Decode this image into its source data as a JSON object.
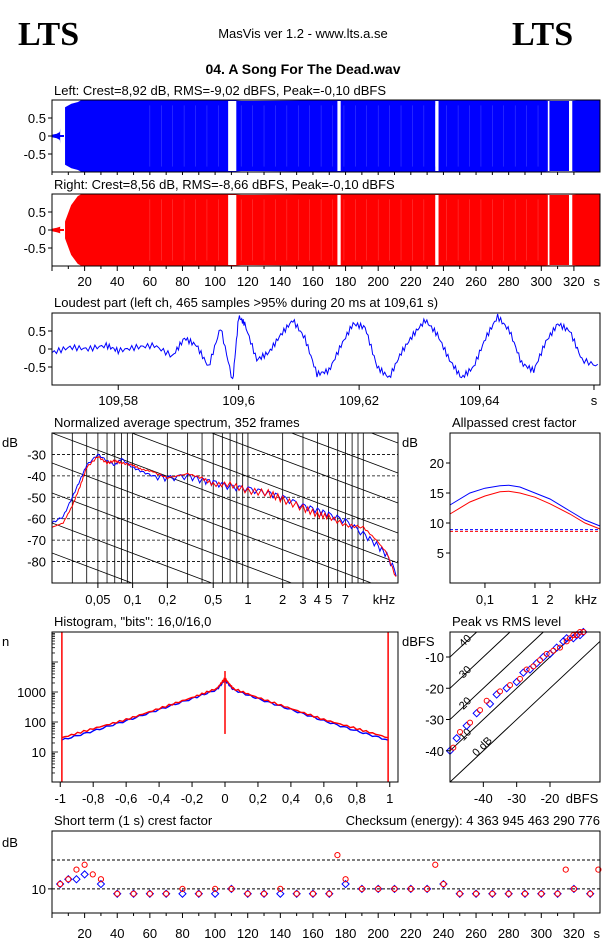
{
  "header": {
    "logo_left": "LTS",
    "logo_right": "LTS",
    "app_title": "MasVis ver 1.2 - www.lts.a.se",
    "file_title": "04. A Song For The Dead.wav"
  },
  "colors": {
    "left": "#0000ff",
    "right": "#ff0000"
  },
  "chart_data": [
    {
      "id": "left-waveform",
      "type": "area",
      "title": "Left: Crest=8,92 dB, RMS=-9,02 dBFS, Peak=-0,10 dBFS",
      "y_ticks": [
        "0.5",
        "0",
        "-0.5"
      ],
      "ylim": [
        -1,
        1
      ],
      "xlim": [
        0,
        336
      ],
      "envelope": {
        "x": [
          0,
          3,
          5,
          8,
          12,
          16,
          18,
          110,
          116,
          172,
          178,
          236,
          240,
          300,
          306,
          318,
          324,
          336
        ],
        "amp": [
          0.02,
          0.05,
          0.1,
          0.8,
          0.9,
          0.95,
          1,
          1,
          0.98,
          1,
          1,
          1,
          1,
          1,
          0.98,
          0.98,
          1,
          1
        ]
      },
      "gaps": [
        [
          5,
          8
        ],
        [
          108,
          113
        ],
        [
          175,
          177
        ],
        [
          235,
          237
        ],
        [
          304,
          305
        ],
        [
          317,
          319
        ]
      ]
    },
    {
      "id": "right-waveform",
      "type": "area",
      "title": "Right: Crest=8,56 dB, RMS=-8,66 dBFS, Peak=-0,10 dBFS",
      "y_ticks": [
        "0.5",
        "0",
        "-0.5"
      ],
      "ylim": [
        -1,
        1
      ],
      "xlim": [
        0,
        336
      ],
      "x_ticks": [
        "20",
        "40",
        "60",
        "80",
        "100",
        "120",
        "140",
        "160",
        "180",
        "200",
        "220",
        "240",
        "260",
        "280",
        "300",
        "320",
        "s"
      ],
      "envelope": {
        "x": [
          0,
          3,
          5,
          8,
          12,
          16,
          18,
          110,
          116,
          172,
          178,
          236,
          240,
          300,
          306,
          318,
          324,
          336
        ],
        "amp": [
          0.02,
          0.05,
          0.08,
          0.2,
          0.7,
          0.95,
          1,
          1,
          0.98,
          1,
          1,
          1,
          1,
          1,
          0.98,
          0.98,
          1,
          1
        ]
      },
      "gaps": [
        [
          5,
          8
        ],
        [
          108,
          113
        ],
        [
          175,
          177
        ],
        [
          235,
          237
        ],
        [
          304,
          305
        ],
        [
          317,
          319
        ]
      ]
    },
    {
      "id": "loudest-part",
      "type": "line",
      "title": "Loudest part (left  ch, 465 samples >95% during 20 ms at 109,61 s)",
      "y_ticks": [
        "0.5",
        "0",
        "-0.5"
      ],
      "x_ticks": [
        "109,58",
        "109,6",
        "109,62",
        "109,64",
        "s"
      ],
      "x_tick_values": [
        109.58,
        109.6,
        109.62,
        109.64
      ],
      "xlim": [
        109.569,
        109.66
      ],
      "ylim": [
        -1,
        1
      ],
      "x": [
        109.569,
        109.572,
        109.575,
        109.578,
        109.58,
        109.583,
        109.586,
        109.589,
        109.591,
        109.593,
        109.595,
        109.597,
        109.599,
        109.6,
        109.601,
        109.603,
        109.605,
        109.607,
        109.609,
        109.611,
        109.613,
        109.615,
        109.617,
        109.619,
        109.621,
        109.623,
        109.625,
        109.627,
        109.629,
        109.631,
        109.633,
        109.635,
        109.637,
        109.639,
        109.641,
        109.643,
        109.645,
        109.647,
        109.649,
        109.651,
        109.653,
        109.655,
        109.657,
        109.66
      ],
      "y": [
        -0.1,
        0.05,
        0.0,
        0.1,
        -0.05,
        0.05,
        0.1,
        -0.2,
        0.3,
        0.1,
        -0.5,
        0.6,
        -0.9,
        0.9,
        0.7,
        -0.3,
        -0.1,
        0.4,
        0.8,
        0.3,
        -0.7,
        -0.6,
        0.1,
        0.7,
        0.6,
        -0.5,
        -0.8,
        -0.1,
        0.4,
        0.8,
        0.4,
        -0.3,
        -0.8,
        -0.5,
        0.3,
        0.9,
        0.5,
        -0.4,
        -0.6,
        0.2,
        0.7,
        0.5,
        -0.3,
        -0.5
      ]
    },
    {
      "id": "avg-spectrum",
      "type": "line",
      "title": "Normalized average spectrum, 352 frames",
      "ylabel": "dB",
      "xlabel": "kHz",
      "y_ticks": [
        "-30",
        "-40",
        "-50",
        "-60",
        "-70",
        "-80"
      ],
      "y_tick_values": [
        -30,
        -40,
        -50,
        -60,
        -70,
        -80
      ],
      "x_ticks": [
        "0,05",
        "0,1",
        "0,2",
        "0,5",
        "1",
        "2",
        "3",
        "4",
        "5",
        "7",
        "kHz"
      ],
      "x_tick_values": [
        0.05,
        0.1,
        0.2,
        0.5,
        1,
        2,
        3,
        4,
        5,
        7
      ],
      "xlim": [
        0.02,
        20
      ],
      "ylim": [
        -90,
        -20
      ],
      "x_scale": "log",
      "series": [
        {
          "x": [
            0.02,
            0.025,
            0.03,
            0.035,
            0.04,
            0.05,
            0.06,
            0.07,
            0.08,
            0.1,
            0.12,
            0.15,
            0.2,
            0.3,
            0.4,
            0.5,
            0.7,
            1,
            1.5,
            2,
            3,
            4,
            5,
            7,
            10,
            13,
            16,
            20
          ],
          "y": [
            -62,
            -59,
            -50,
            -42,
            -35,
            -30,
            -33,
            -35,
            -32,
            -36,
            -38,
            -40,
            -41,
            -40,
            -42,
            -43,
            -45,
            -46,
            -48,
            -50,
            -54,
            -56,
            -58,
            -61,
            -67,
            -72,
            -77,
            -87
          ]
        },
        {
          "x": [
            0.02,
            0.025,
            0.03,
            0.035,
            0.04,
            0.05,
            0.06,
            0.07,
            0.08,
            0.1,
            0.12,
            0.15,
            0.2,
            0.3,
            0.4,
            0.5,
            0.7,
            1,
            1.5,
            2,
            3,
            4,
            5,
            7,
            10,
            13,
            16,
            20
          ],
          "y": [
            -64,
            -62,
            -54,
            -45,
            -36,
            -31,
            -34,
            -33,
            -34,
            -35,
            -37,
            -38,
            -41,
            -39,
            -41,
            -44,
            -44,
            -47,
            -48,
            -51,
            -55,
            -58,
            -59,
            -63,
            -64,
            -70,
            -76,
            -90
          ]
        }
      ]
    },
    {
      "id": "allpassed-crest",
      "type": "line",
      "title": "Allpassed crest factor",
      "ylabel": "dB",
      "xlabel": "kHz",
      "y_ticks": [
        "20",
        "15",
        "10",
        "5"
      ],
      "y_tick_values": [
        20,
        15,
        10,
        5
      ],
      "x_ticks": [
        "0,1",
        "1",
        "2",
        "kHz"
      ],
      "x_tick_values": [
        0.1,
        1,
        2
      ],
      "xlim": [
        0.02,
        20
      ],
      "ylim": [
        0,
        25
      ],
      "x_scale": "log",
      "series": [
        {
          "x": [
            0.02,
            0.05,
            0.1,
            0.2,
            0.3,
            0.5,
            1,
            2,
            5,
            10,
            20
          ],
          "y": [
            13,
            15,
            15.8,
            16.2,
            16.3,
            16,
            15,
            14,
            12,
            10.5,
            9.5
          ]
        },
        {
          "x": [
            0.02,
            0.05,
            0.1,
            0.2,
            0.3,
            0.5,
            1,
            2,
            5,
            10,
            20
          ],
          "y": [
            11.5,
            13.5,
            14.5,
            15.2,
            15.3,
            15,
            14.3,
            13.2,
            11.5,
            10,
            9
          ]
        }
      ],
      "reference_levels": [
        8.9,
        8.6
      ]
    },
    {
      "id": "histogram",
      "type": "line",
      "title": "Histogram, \"bits\": 16,0/16,0",
      "ylabel": "n",
      "y_ticks": [
        "1000",
        "100",
        "10"
      ],
      "y_tick_values": [
        1000,
        100,
        10
      ],
      "x_ticks": [
        "-1",
        "-0,8",
        "-0,6",
        "-0,4",
        "-0,2",
        "0",
        "0,2",
        "0,4",
        "0,6",
        "0,8",
        "1"
      ],
      "x_tick_values": [
        -1,
        -0.8,
        -0.6,
        -0.4,
        -0.2,
        0,
        0.2,
        0.4,
        0.6,
        0.8,
        1
      ],
      "xlim": [
        -1.05,
        1.05
      ],
      "ylim": [
        1,
        100000
      ],
      "y_scale": "log",
      "series": [
        {
          "x": [
            -0.99,
            -0.8,
            -0.6,
            -0.4,
            -0.2,
            -0.05,
            0,
            0.05,
            0.2,
            0.4,
            0.6,
            0.8,
            0.99
          ],
          "y": [
            25,
            50,
            110,
            260,
            600,
            1200,
            2500,
            1200,
            600,
            260,
            110,
            50,
            25
          ]
        },
        {
          "x": [
            -0.99,
            -0.8,
            -0.6,
            -0.4,
            -0.2,
            -0.05,
            0,
            0.05,
            0.2,
            0.4,
            0.6,
            0.8,
            0.99
          ],
          "y": [
            30,
            60,
            120,
            280,
            650,
            1300,
            2800,
            1300,
            650,
            280,
            120,
            60,
            30
          ]
        }
      ]
    },
    {
      "id": "peak-vs-rms",
      "type": "scatter",
      "title": "Peak vs RMS level",
      "ylabel": "dBFS",
      "xlabel": "dBFS",
      "y_ticks": [
        "-10",
        "-20",
        "-30",
        "-40"
      ],
      "y_tick_values": [
        -10,
        -20,
        -30,
        -40
      ],
      "x_ticks": [
        "-40",
        "-30",
        "-20",
        "dBFS"
      ],
      "x_tick_values": [
        -40,
        -30,
        -20
      ],
      "xlim": [
        -50,
        -5
      ],
      "ylim": [
        -50,
        -2
      ],
      "diagonal_labels": [
        "40",
        "30",
        "20",
        "10",
        "0 dB"
      ],
      "diagonal_offsets": [
        40,
        30,
        20,
        10,
        0
      ],
      "series": [
        {
          "x": [
            -50,
            -48,
            -45,
            -42,
            -38,
            -36,
            -33,
            -30,
            -28,
            -26,
            -24,
            -22,
            -20,
            -18,
            -16,
            -15,
            -13,
            -12,
            -11,
            -10
          ],
          "y": [
            -40,
            -36,
            -32,
            -28,
            -25,
            -22,
            -20,
            -18,
            -15,
            -14,
            -12,
            -10,
            -9,
            -7,
            -5,
            -4,
            -4,
            -3,
            -3,
            -2
          ]
        },
        {
          "x": [
            -49,
            -47,
            -44,
            -41,
            -39,
            -35,
            -32,
            -29,
            -27,
            -25,
            -23,
            -21,
            -19,
            -17,
            -15,
            -14,
            -13,
            -12,
            -11,
            -10
          ],
          "y": [
            -39,
            -34,
            -31,
            -27,
            -24,
            -21,
            -19,
            -17,
            -14,
            -13,
            -11,
            -9,
            -8,
            -7,
            -5,
            -4,
            -3,
            -3,
            -2,
            -2
          ]
        }
      ]
    },
    {
      "id": "short-term-crest",
      "type": "scatter",
      "title": "Short term (1 s) crest factor",
      "checksum": "Checksum (energy):  4 363 945 463 290 776",
      "ylabel": "dB",
      "y_ticks": [
        "10"
      ],
      "y_tick_values": [
        10
      ],
      "x_ticks": [
        "20",
        "40",
        "60",
        "80",
        "100",
        "120",
        "140",
        "160",
        "180",
        "200",
        "220",
        "240",
        "260",
        "280",
        "300",
        "320",
        "s"
      ],
      "xlim": [
        0,
        336
      ],
      "ylim": [
        5,
        22
      ],
      "reference_levels": [
        16,
        10
      ],
      "series": [
        {
          "x": [
            5,
            10,
            15,
            20,
            30,
            40,
            50,
            60,
            70,
            80,
            90,
            100,
            110,
            120,
            130,
            140,
            150,
            160,
            170,
            180,
            190,
            200,
            210,
            220,
            230,
            240,
            250,
            260,
            270,
            280,
            290,
            300,
            310,
            320,
            330
          ],
          "y": [
            11,
            12,
            12,
            13,
            11,
            9,
            9,
            9,
            9,
            9,
            9,
            9,
            10,
            9,
            9,
            9,
            9,
            9,
            9,
            11,
            10,
            10,
            10,
            10,
            10,
            11,
            9,
            9,
            9,
            9,
            9,
            9,
            9,
            10,
            9
          ]
        },
        {
          "x": [
            5,
            10,
            15,
            20,
            25,
            30,
            40,
            50,
            60,
            70,
            80,
            90,
            100,
            110,
            120,
            130,
            140,
            150,
            160,
            170,
            175,
            180,
            190,
            200,
            210,
            220,
            230,
            235,
            240,
            250,
            260,
            270,
            280,
            290,
            300,
            310,
            315,
            320,
            330,
            335
          ],
          "y": [
            11,
            12,
            14,
            15,
            13,
            12,
            9,
            9,
            9,
            9,
            10,
            9,
            10,
            10,
            9,
            9,
            10,
            9,
            9,
            9,
            17,
            12,
            10,
            10,
            10,
            10,
            10,
            15,
            11,
            9,
            9,
            9,
            9,
            9,
            9,
            9,
            14,
            10,
            9,
            14
          ]
        }
      ]
    }
  ]
}
